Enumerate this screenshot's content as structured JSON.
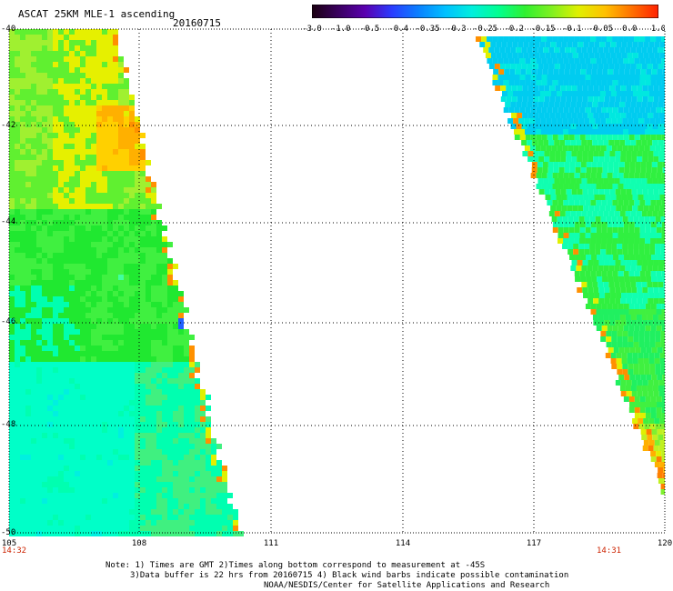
{
  "header": {
    "title": "ASCAT 25KM MLE-1 ascending",
    "date": "20160715"
  },
  "colorbar": {
    "labels": [
      "-3.0",
      "-1.0",
      "-0.5",
      "-0.4",
      "-0.35",
      "-0.3",
      "-0.25",
      "-0.2",
      "-0.15",
      "-0.1",
      "-0.05",
      "0.0",
      "1.0"
    ],
    "colors": [
      "#1a0010",
      "#3a0060",
      "#5a00b0",
      "#2a3cff",
      "#0a80ff",
      "#00c0ff",
      "#00eedd",
      "#00ff90",
      "#30f030",
      "#80f020",
      "#e0f000",
      "#ffc000",
      "#ff7000",
      "#ff2000"
    ]
  },
  "map": {
    "lon_range": [
      105,
      120
    ],
    "lat_range": [
      -50,
      -40
    ],
    "lat_labels": [
      "-40",
      "-42",
      "-44",
      "-46",
      "-48",
      "-50"
    ],
    "lon_labels": [
      "105",
      "108",
      "111",
      "114",
      "117",
      "120"
    ],
    "time_left": "14:32",
    "time_right": "14:31"
  },
  "footer": {
    "line1": "Note: 1) Times are GMT 2)Times along bottom correspond to measurement at -45S",
    "line2": "3)Data buffer is 22 hrs from 20160715 4) Black wind barbs indicate possible contamination",
    "line3": "NOAA/NESDIS/Center for Satellite Applications and Research"
  }
}
